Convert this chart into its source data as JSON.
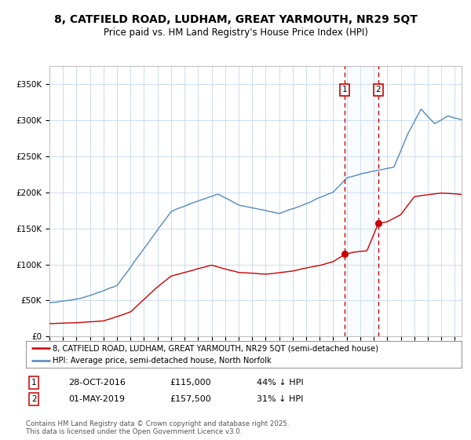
{
  "title": "8, CATFIELD ROAD, LUDHAM, GREAT YARMOUTH, NR29 5QT",
  "subtitle": "Price paid vs. HM Land Registry's House Price Index (HPI)",
  "legend_line1": "8, CATFIELD ROAD, LUDHAM, GREAT YARMOUTH, NR29 5QT (semi-detached house)",
  "legend_line2": "HPI: Average price, semi-detached house, North Norfolk",
  "event1_date": "28-OCT-2016",
  "event1_price": "£115,000",
  "event1_hpi": "44% ↓ HPI",
  "event1_year": 2016.83,
  "event1_price_val": 115000,
  "event2_date": "01-MAY-2019",
  "event2_price": "£157,500",
  "event2_hpi": "31% ↓ HPI",
  "event2_year": 2019.33,
  "event2_price_val": 157500,
  "copyright": "Contains HM Land Registry data © Crown copyright and database right 2025.\nThis data is licensed under the Open Government Licence v3.0.",
  "red_color": "#cc0000",
  "blue_color": "#5588bb",
  "background_color": "#ffffff",
  "grid_color": "#ccddee",
  "dashed_line_color": "#cc0000",
  "highlight_color": "#ddeeff",
  "ylim": [
    0,
    375000
  ],
  "xlim_start": 1995.0,
  "xlim_end": 2025.5,
  "yticks": [
    0,
    50000,
    100000,
    150000,
    200000,
    250000,
    300000,
    350000
  ]
}
